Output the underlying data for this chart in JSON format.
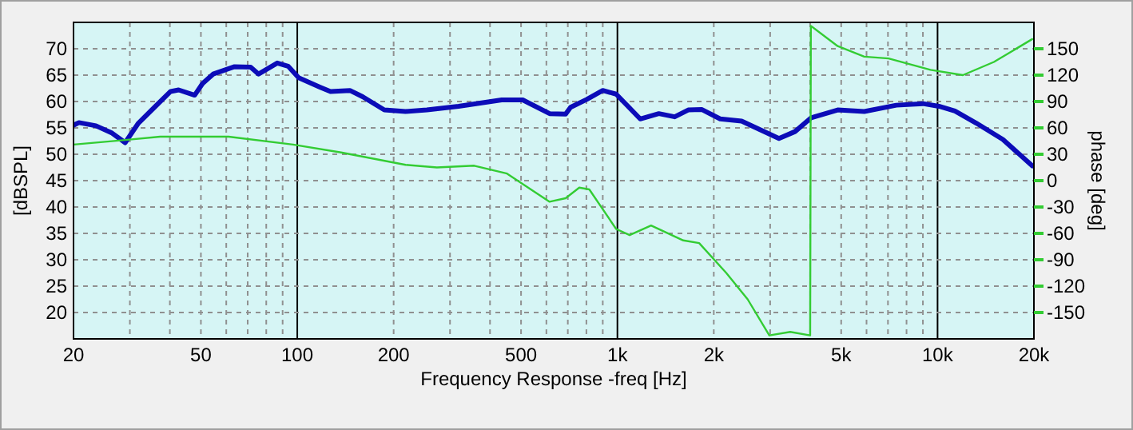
{
  "chart_data": {
    "type": "line",
    "xlabel": "Frequency Response -freq [Hz]",
    "ylabel": "[dBSPL]",
    "y2label": "phase [deg]",
    "log": "x",
    "grid": true,
    "marker": "none",
    "line_style": "solid",
    "xlim": [
      20,
      20000
    ],
    "ylim": [
      15,
      75
    ],
    "y2lim": [
      -180,
      180
    ],
    "xticks": [
      20,
      {
        "value": 30,
        "label": null
      },
      {
        "value": 40,
        "label": null
      },
      50,
      {
        "value": 60,
        "label": null
      },
      {
        "value": 70,
        "label": null
      },
      {
        "value": 80,
        "label": null
      },
      {
        "value": 90,
        "label": null
      },
      100,
      200,
      {
        "value": 300,
        "label": null
      },
      {
        "value": 400,
        "label": null
      },
      500,
      {
        "value": 600,
        "label": null
      },
      {
        "value": 700,
        "label": null
      },
      {
        "value": 800,
        "label": null
      },
      {
        "value": 900,
        "label": null
      },
      {
        "value": 1000,
        "label": "1k"
      },
      {
        "value": 2000,
        "label": "2k"
      },
      {
        "value": 3000,
        "label": null
      },
      {
        "value": 4000,
        "label": null
      },
      {
        "value": 5000,
        "label": "5k"
      },
      {
        "value": 6000,
        "label": null
      },
      {
        "value": 7000,
        "label": null
      },
      {
        "value": 8000,
        "label": null
      },
      {
        "value": 9000,
        "label": null
      },
      {
        "value": 10000,
        "label": "10k"
      },
      {
        "value": 20000,
        "label": "20k"
      }
    ],
    "yticks": [
      20,
      25,
      30,
      35,
      40,
      45,
      50,
      55,
      60,
      65,
      70
    ],
    "y2ticks": [
      -150,
      -120,
      -90,
      -60,
      -30,
      0,
      30,
      60,
      90,
      120,
      150
    ],
    "series": [
      {
        "color": "#0c0cb8",
        "x": [
          20,
          20.8,
          23.5,
          26.4,
          29,
          31.9,
          35.8,
          40.2,
          42.6,
          47.8,
          50.6,
          54.6,
          63.7,
          71.5,
          75.7,
          86.6,
          93.6,
          101,
          118,
          127,
          146,
          160,
          187,
          218,
          254,
          319,
          435,
          506,
          614,
          689,
          714,
          802,
          900,
          991,
          1178,
          1347,
          1510,
          1664,
          1832,
          2094,
          2443,
          3196,
          3587,
          4025,
          4876,
          5904,
          7433,
          9000,
          10100,
          11330,
          13210,
          16000,
          19770
        ],
        "values": [
          55.5,
          56,
          55.4,
          54,
          52.2,
          55.9,
          58.9,
          61.9,
          62.2,
          61.2,
          63.4,
          65.2,
          66.6,
          66.5,
          65.2,
          67.3,
          66.7,
          64.5,
          62.7,
          61.9,
          62.1,
          60.9,
          58.4,
          58.1,
          58.4,
          59.1,
          60.3,
          60.3,
          57.7,
          57.6,
          58.9,
          60.4,
          62.1,
          61.4,
          56.7,
          57.7,
          57.1,
          58.4,
          58.5,
          56.7,
          56.3,
          53,
          54.3,
          56.9,
          58.4,
          58.1,
          59.3,
          59.6,
          59.1,
          58.2,
          55.9,
          52.8,
          47.8
        ]
      },
      {
        "color": "#33cc33",
        "axis": "y2",
        "x": [
          20,
          28.6,
          37.3,
          61,
          97,
          137,
          218,
          273,
          357,
          452,
          614,
          689,
          760,
          817,
          991,
          1092,
          1274,
          1606,
          1800,
          2188,
          2552,
          2982,
          3466,
          4000,
          4020,
          4876,
          5904,
          7030,
          9500,
          12000,
          15000,
          19770
        ],
        "values": [
          41,
          46,
          50,
          50,
          41,
          32,
          18,
          15,
          17,
          8,
          -24,
          -20,
          -8,
          -10,
          -55,
          -62,
          -51,
          -68,
          -71,
          -105,
          -135,
          -176,
          -172,
          -176,
          176,
          153,
          141,
          139,
          126,
          120,
          135,
          161
        ]
      }
    ]
  }
}
